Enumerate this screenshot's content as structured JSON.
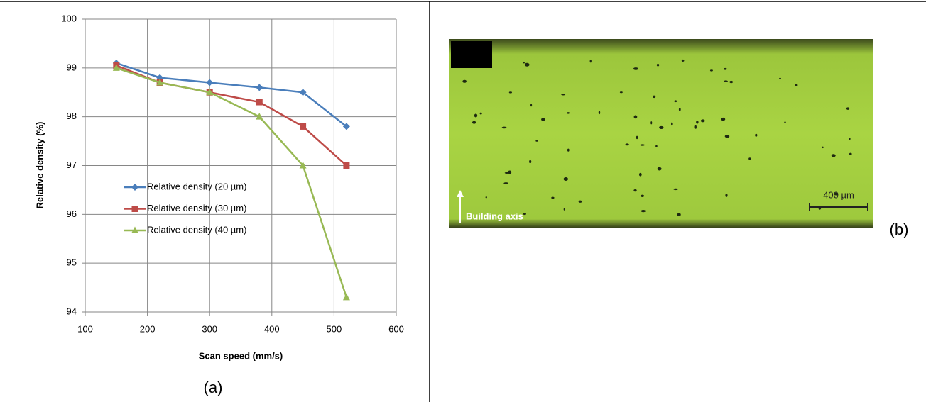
{
  "chart_data": {
    "type": "line",
    "x_label": "Scan speed (mm/s)",
    "y_label": "Relative density (%)",
    "x": [
      150,
      220,
      300,
      380,
      450,
      520
    ],
    "series": [
      {
        "name": "Relative density (20 µm)",
        "color": "#4a7ebb",
        "values": [
          99.1,
          98.8,
          98.7,
          98.6,
          98.5,
          97.8
        ]
      },
      {
        "name": "Relative density (30 µm)",
        "color": "#be4b48",
        "values": [
          99.05,
          98.7,
          98.5,
          98.3,
          97.8,
          97.0
        ]
      },
      {
        "name": "Relative density (40 µm)",
        "color": "#98b954",
        "values": [
          99.0,
          98.7,
          98.5,
          98.0,
          97.0,
          94.3
        ]
      }
    ],
    "xlim": [
      100,
      600
    ],
    "xticks": [
      100,
      200,
      300,
      400,
      500,
      600
    ],
    "ylim": [
      94,
      100
    ],
    "yticks": [
      94,
      95,
      96,
      97,
      98,
      99,
      100
    ],
    "grid": true,
    "legend": "left"
  },
  "panel_a_label": "(a)",
  "panel_b_label": "(b)",
  "micrograph": {
    "scale_label": "400 µm",
    "axis_label": "Building axis"
  }
}
